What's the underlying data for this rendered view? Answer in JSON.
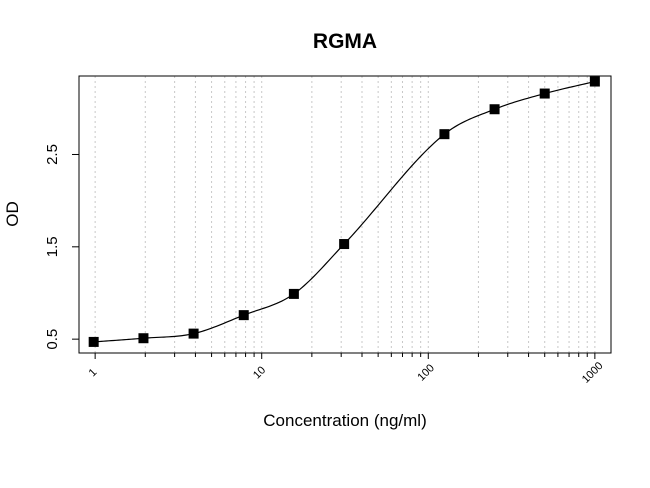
{
  "chart_data": {
    "type": "scatter",
    "title": "RGMA",
    "xlabel": "Concentration (ng/ml)",
    "ylabel": "OD",
    "x_scale": "log",
    "xlim": [
      0.8,
      1250
    ],
    "ylim": [
      0.35,
      3.35
    ],
    "x_ticks": [
      1,
      10,
      100,
      1000
    ],
    "x_tick_labels": [
      "1",
      "10",
      "100",
      "1000"
    ],
    "y_ticks": [
      0.5,
      1.5,
      2.5
    ],
    "y_tick_labels": [
      "0.5",
      "1.5",
      "2.5"
    ],
    "grid": "vertical-dotted",
    "series": [
      {
        "marker": "square",
        "color": "#000000",
        "x": [
          0.98,
          1.95,
          3.9,
          7.8,
          15.6,
          31.25,
          125,
          250,
          500,
          1000
        ],
        "y": [
          0.47,
          0.51,
          0.56,
          0.76,
          0.99,
          1.53,
          2.72,
          2.99,
          3.16,
          3.29
        ]
      }
    ],
    "fit_curve": {
      "color": "#000000"
    }
  }
}
